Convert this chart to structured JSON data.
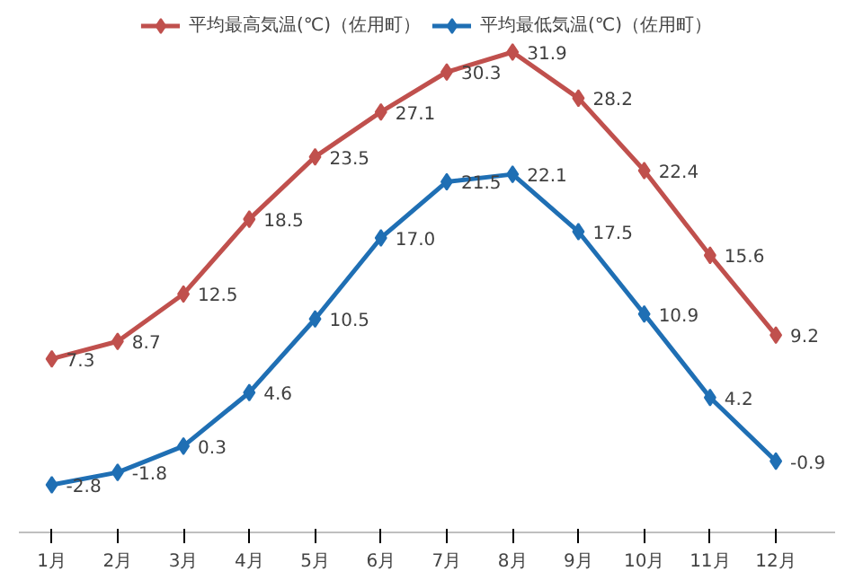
{
  "chart_data": {
    "type": "line",
    "categories": [
      "1月",
      "2月",
      "3月",
      "4月",
      "5月",
      "6月",
      "7月",
      "8月",
      "9月",
      "10月",
      "11月",
      "12月"
    ],
    "series": [
      {
        "name": "平均最高気温(℃)（佐用町）",
        "color": "#c0504d",
        "values": [
          7.3,
          8.7,
          12.5,
          18.5,
          23.5,
          27.1,
          30.3,
          31.9,
          28.2,
          22.4,
          15.6,
          9.2
        ],
        "value_labels": [
          "7.3",
          "8.7",
          "12.5",
          "18.5",
          "23.5",
          "27.1",
          "30.3",
          "31.9",
          "28.2",
          "22.4",
          "15.6",
          "9.2"
        ]
      },
      {
        "name": "平均最低気温(℃)（佐用町）",
        "color": "#1f6fb4",
        "values": [
          -2.8,
          -1.8,
          0.3,
          4.6,
          10.5,
          17.0,
          21.5,
          22.1,
          17.5,
          10.9,
          4.2,
          -0.9
        ],
        "value_labels": [
          "-2.8",
          "-1.8",
          "0.3",
          "4.6",
          "10.5",
          "17.0",
          "21.5",
          "22.1",
          "17.5",
          "10.9",
          "4.2",
          "-0.9"
        ]
      }
    ],
    "tick_labels": "x",
    "legend": "top",
    "grid": false,
    "marker": "diamond",
    "line_style": "solid"
  }
}
